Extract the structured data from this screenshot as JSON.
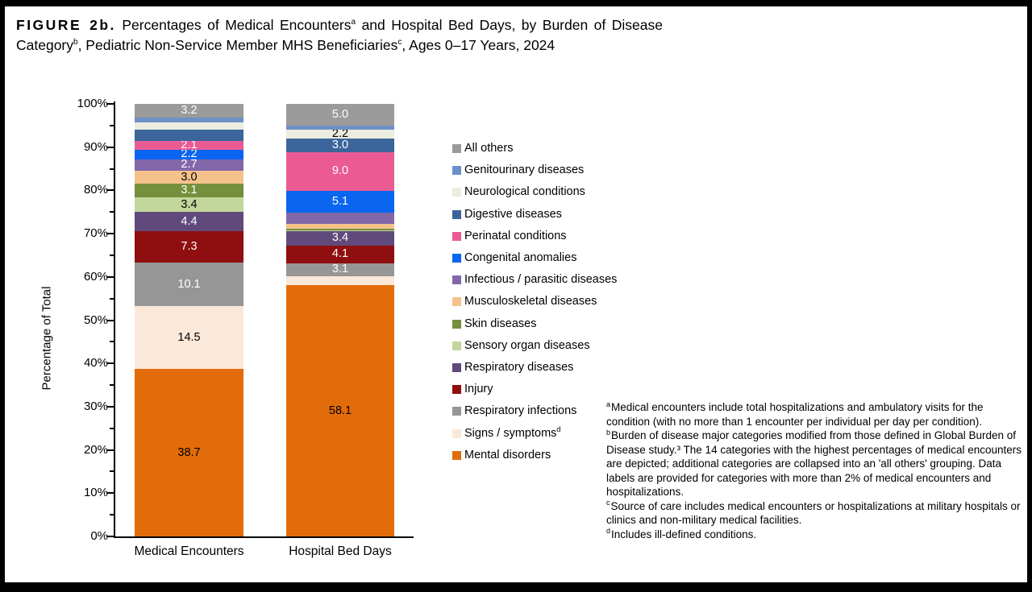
{
  "title": {
    "parts": [
      {
        "text": "FIGURE 2b.",
        "style": "figure-label"
      },
      {
        "text": " Percentages of Medical Encounters"
      },
      {
        "text": "a",
        "sup": true
      },
      {
        "text": " and Hospital Bed Days, by Burden of Disease Category"
      },
      {
        "text": "b",
        "sup": true
      },
      {
        "text": ", Pediatric Non-Service Member MHS Beneficiaries"
      },
      {
        "text": "c",
        "sup": true
      },
      {
        "text": ", Ages 0–17 Years, 2024"
      }
    ]
  },
  "chart_data": {
    "type": "bar",
    "subtype": "100%-stacked-column",
    "title": "Percentages of Medical Encounters and Hospital Bed Days, by Burden of Disease Category, Pediatric Non-Service Member MHS Beneficiaries, Ages 0-17 Years, 2024",
    "categories": [
      "Medical Encounters",
      "Hospital Bed Days"
    ],
    "xlabel": "",
    "ylabel": "Percentage of Total",
    "ylim": [
      0,
      100
    ],
    "ytick_labels": [
      "0%",
      "10%",
      "20%",
      "30%",
      "40%",
      "50%",
      "60%",
      "70%",
      "80%",
      "90%",
      "100%"
    ],
    "minor_tick_step_pct": 5,
    "grid": false,
    "legend_position": "right",
    "note": "Series listed bottom-to-top of stack. Segments without data labels in the figure are estimates read from pixel heights.",
    "series": [
      {
        "name": "Mental disorders",
        "color": "#E36C0A",
        "values": [
          38.7,
          58.1
        ],
        "labels": [
          "38.7",
          "58.1"
        ],
        "label_color": "#000000"
      },
      {
        "name": "Signs / symptoms",
        "legend_sup": "d",
        "color": "#FBE8D9",
        "values": [
          14.5,
          2.0
        ],
        "labels": [
          "14.5",
          null
        ],
        "label_color": "#000000"
      },
      {
        "name": "Respiratory infections",
        "color": "#969696",
        "values": [
          10.1,
          3.1
        ],
        "labels": [
          "10.1",
          "3.1"
        ],
        "label_color": "#FFFFFF"
      },
      {
        "name": "Injury",
        "color": "#8F0E0F",
        "values": [
          7.3,
          4.1
        ],
        "labels": [
          "7.3",
          "4.1"
        ],
        "label_color": "#FFFFFF"
      },
      {
        "name": "Respiratory diseases",
        "color": "#5F4A7B",
        "values": [
          4.4,
          3.4
        ],
        "labels": [
          "4.4",
          "3.4"
        ],
        "label_color": "#FFFFFF"
      },
      {
        "name": "Sensory organ diseases",
        "color": "#C3D69B",
        "values": [
          3.4,
          0.1
        ],
        "labels": [
          "3.4",
          null
        ],
        "label_color": "#000000"
      },
      {
        "name": "Skin diseases",
        "color": "#75903C",
        "values": [
          3.1,
          0.4
        ],
        "labels": [
          "3.1",
          null
        ],
        "label_color": "#FFFFFF"
      },
      {
        "name": "Musculoskeletal diseases",
        "color": "#F5C28C",
        "values": [
          3.0,
          1.1
        ],
        "labels": [
          "3.0",
          null
        ],
        "label_color": "#000000"
      },
      {
        "name": "Infectious / parasitic diseases",
        "color": "#8268A8",
        "values": [
          2.7,
          2.5
        ],
        "labels": [
          "2.7",
          null
        ],
        "label_color": "#FFFFFF"
      },
      {
        "name": "Congenital anomalies",
        "color": "#0A66F0",
        "values": [
          2.2,
          5.1
        ],
        "labels": [
          "2.2",
          "5.1"
        ],
        "label_color": "#FFFFFF"
      },
      {
        "name": "Perinatal conditions",
        "color": "#EA5B94",
        "values": [
          2.1,
          9.0
        ],
        "labels": [
          "2.1",
          "9.0"
        ],
        "label_color": "#FFFFFF"
      },
      {
        "name": "Digestive diseases",
        "color": "#3B659B",
        "values": [
          2.5,
          3.0
        ],
        "labels": [
          null,
          "3.0"
        ],
        "label_color": "#FFFFFF"
      },
      {
        "name": "Neurological conditions",
        "color": "#EAEDDF",
        "values": [
          1.7,
          2.2
        ],
        "labels": [
          null,
          "2.2"
        ],
        "label_color": "#000000"
      },
      {
        "name": "Genitourinary diseases",
        "color": "#6E90C8",
        "values": [
          1.1,
          0.9
        ],
        "labels": [
          null,
          null
        ],
        "label_color": "#FFFFFF"
      },
      {
        "name": "All others",
        "color": "#9B9B9B",
        "values": [
          3.2,
          5.0
        ],
        "labels": [
          "3.2",
          "5.0"
        ],
        "label_color": "#FFFFFF"
      }
    ]
  },
  "footnotes": [
    {
      "marker": "a",
      "text": "Medical encounters include total hospitalizations and ambulatory visits for the condition (with no more than 1 encounter per individual per day per condition)."
    },
    {
      "marker": "b",
      "text": "Burden of disease major categories modified from those defined in Global Burden of Disease study.³ The 14 categories with the highest percentages of medical encounters are depicted; additional categories are collapsed into an 'all others' grouping.  Data labels are provided for categories with more than 2% of medical encounters and hospitalizations."
    },
    {
      "marker": "c",
      "text": "Source of care includes medical encounters or hospitalizations at military hospitals or clinics and non-military medical facilities."
    },
    {
      "marker": "d",
      "text": "Includes ill-defined conditions."
    }
  ]
}
